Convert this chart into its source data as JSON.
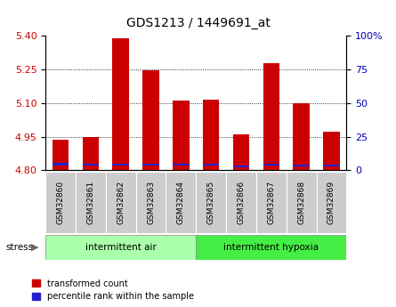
{
  "title": "GDS1213 / 1449691_at",
  "samples": [
    "GSM32860",
    "GSM32861",
    "GSM32862",
    "GSM32863",
    "GSM32864",
    "GSM32865",
    "GSM32866",
    "GSM32867",
    "GSM32868",
    "GSM32869"
  ],
  "red_values": [
    4.935,
    4.947,
    5.385,
    5.245,
    5.11,
    5.115,
    4.96,
    5.275,
    5.1,
    4.97
  ],
  "blue_bottom": [
    4.822,
    4.82,
    4.82,
    4.82,
    4.82,
    4.82,
    4.815,
    4.82,
    4.818,
    4.818
  ],
  "blue_heights": [
    0.01,
    0.01,
    0.01,
    0.01,
    0.01,
    0.01,
    0.008,
    0.01,
    0.008,
    0.008
  ],
  "baseline": 4.8,
  "ylim": [
    4.8,
    5.4
  ],
  "y2lim": [
    0,
    100
  ],
  "yticks": [
    4.8,
    4.95,
    5.1,
    5.25,
    5.4
  ],
  "y2ticks": [
    0,
    25,
    50,
    75,
    100
  ],
  "group1_label": "intermittent air",
  "group2_label": "intermittent hypoxia",
  "group1_color": "#aaffaa",
  "group2_color": "#44ee44",
  "stress_label": "stress",
  "bar_width": 0.55,
  "red_color": "#cc0000",
  "blue_color": "#2222cc",
  "tick_label_bg": "#cccccc",
  "grid_color": "#000000",
  "title_fontsize": 10,
  "axis_fontsize": 8,
  "legend_red": "transformed count",
  "legend_blue": "percentile rank within the sample"
}
